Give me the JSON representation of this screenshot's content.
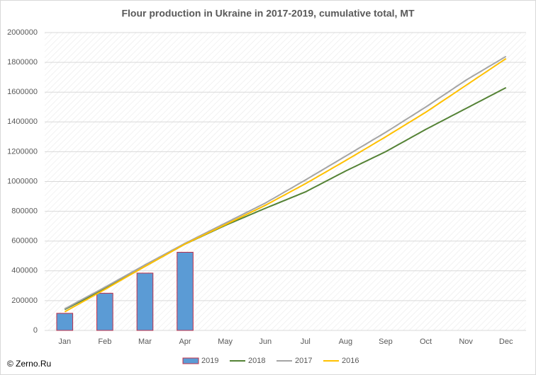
{
  "chart_data": {
    "type": "bar",
    "title": "Flour production in Ukraine in 2017-2019, cumulative total, MT",
    "categories": [
      "Jan",
      "Feb",
      "Mar",
      "Apr",
      "May",
      "Jun",
      "Jul",
      "Aug",
      "Sep",
      "Oct",
      "Nov",
      "Dec"
    ],
    "series": [
      {
        "name": "2019",
        "type": "bar",
        "color": "#5b9bd5",
        "values": [
          115000,
          250000,
          385000,
          525000,
          null,
          null,
          null,
          null,
          null,
          null,
          null,
          null
        ]
      },
      {
        "name": "2018",
        "type": "line",
        "color": "#548235",
        "values": [
          140000,
          280000,
          430000,
          580000,
          705000,
          820000,
          930000,
          1070000,
          1200000,
          1350000,
          1490000,
          1630000
        ]
      },
      {
        "name": "2017",
        "type": "line",
        "color": "#a5a5a5",
        "values": [
          145000,
          290000,
          440000,
          585000,
          720000,
          855000,
          1010000,
          1170000,
          1330000,
          1500000,
          1680000,
          1840000
        ]
      },
      {
        "name": "2016",
        "type": "line",
        "color": "#ffc000",
        "values": [
          125000,
          275000,
          430000,
          580000,
          710000,
          840000,
          985000,
          1140000,
          1300000,
          1465000,
          1645000,
          1825000
        ]
      }
    ],
    "ylim": [
      0,
      2000000
    ],
    "yticks": [
      0,
      200000,
      400000,
      600000,
      800000,
      1000000,
      1200000,
      1400000,
      1600000,
      1800000,
      2000000
    ],
    "grid": true,
    "legend": "bottom",
    "watermark": "© Zerno.Ru"
  }
}
